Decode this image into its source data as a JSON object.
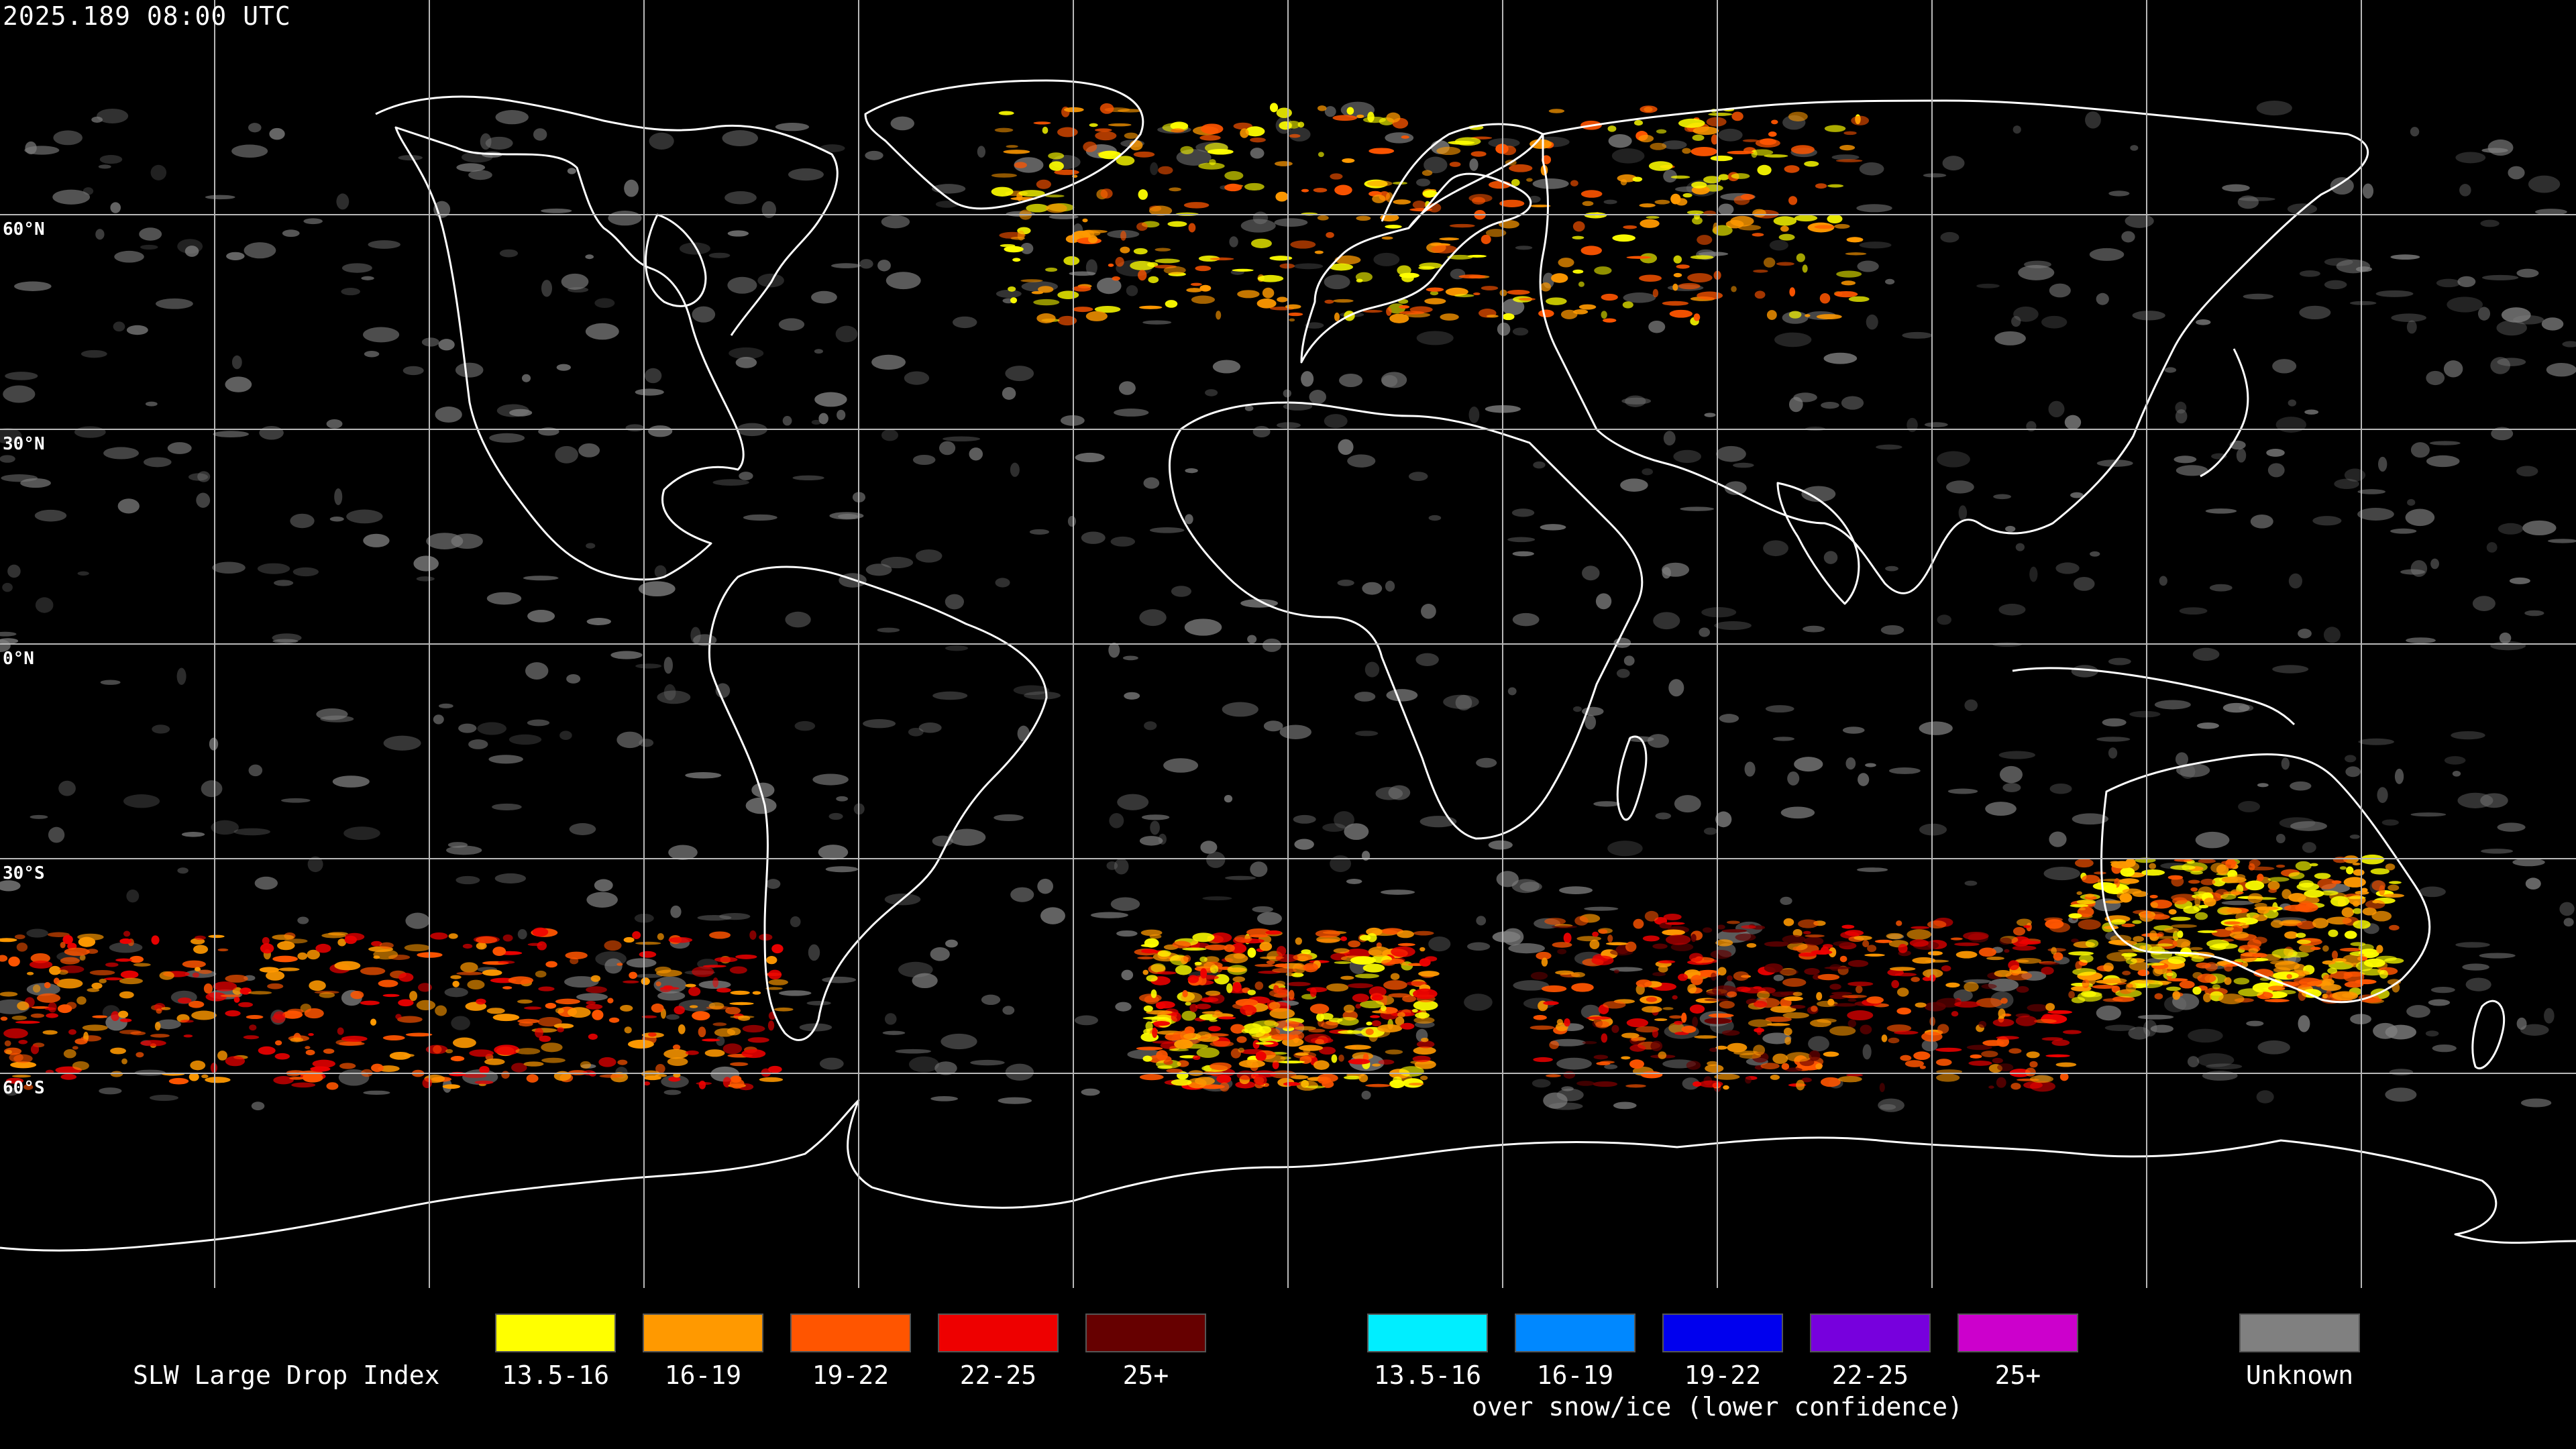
{
  "timestamp": "2025.189 08:00 UTC",
  "map": {
    "lat_labels": [
      "60°N",
      "30°N",
      "0°N",
      "30°S",
      "60°S"
    ],
    "lat_values": [
      60,
      30,
      0,
      -30,
      -60
    ],
    "lon_grid_step_deg": 30,
    "background": "#000000",
    "grid_color": "#b8b8b8",
    "coast_color": "#ffffff",
    "regions": [
      {
        "name": "southern-ocean-pacific-band",
        "lon": [
          -180,
          -70
        ],
        "lat": [
          -62,
          -40
        ],
        "classes": [
          "16-19",
          "19-22",
          "22-25"
        ]
      },
      {
        "name": "southern-ocean-atlantic",
        "lon": [
          -20,
          20
        ],
        "lat": [
          -62,
          -40
        ],
        "classes": [
          "13.5-16",
          "16-19",
          "19-22",
          "22-25"
        ]
      },
      {
        "name": "southern-ocean-indian",
        "lon": [
          35,
          110
        ],
        "lat": [
          -62,
          -38
        ],
        "classes": [
          "16-19",
          "19-22",
          "22-25",
          "25+"
        ]
      },
      {
        "name": "north-atlantic-europe",
        "lon": [
          -40,
          80
        ],
        "lat": [
          45,
          75
        ],
        "classes": [
          "13.5-16",
          "16-19",
          "19-22"
        ]
      },
      {
        "name": "australia-south",
        "lon": [
          110,
          155
        ],
        "lat": [
          -50,
          -30
        ],
        "classes": [
          "13.5-16",
          "16-19",
          "19-22"
        ]
      }
    ]
  },
  "legend": {
    "title": "SLW Large Drop Index",
    "bins": [
      {
        "label": "13.5-16",
        "color": "#ffff00"
      },
      {
        "label": "16-19",
        "color": "#ff9900"
      },
      {
        "label": "19-22",
        "color": "#ff5500"
      },
      {
        "label": "22-25",
        "color": "#ee0000"
      },
      {
        "label": "25+",
        "color": "#660000"
      }
    ],
    "snow_bins": [
      {
        "label": "13.5-16",
        "color": "#00eeff"
      },
      {
        "label": "16-19",
        "color": "#0088ff"
      },
      {
        "label": "19-22",
        "color": "#0000ee"
      },
      {
        "label": "22-25",
        "color": "#7700dd"
      },
      {
        "label": "25+",
        "color": "#cc00cc"
      }
    ],
    "snow_caption": "over snow/ice (lower confidence)",
    "unknown": {
      "label": "Unknown",
      "color": "#808080"
    }
  }
}
